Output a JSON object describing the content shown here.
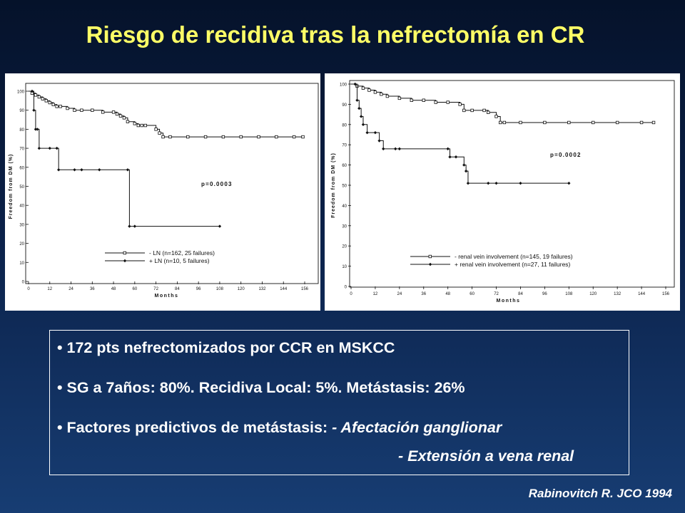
{
  "title": "Riesgo de recidiva tras la nefrectomía en CR",
  "bullets": {
    "b1": "• 172 pts nefrectomizados por CCR en MSKCC",
    "b2": "• SG a 7años: 80%.   Recidiva Local: 5%.   Metástasis: 26%",
    "b3_prefix": "• Factores predictivos de metástasis: ",
    "b3_item1": "- Afectación ganglionar",
    "b3_item2": "- Extensión a vena renal"
  },
  "citation": "Rabinovitch R. JCO 1994",
  "colors": {
    "title": "#ffff66",
    "text": "#ffffff",
    "curve": "#111111"
  },
  "chart_data": [
    {
      "type": "line",
      "step": true,
      "xlabel": "Months",
      "ylabel": "Freedom from DM (%)",
      "xlim": [
        0,
        156
      ],
      "ylim": [
        0,
        100
      ],
      "xticks": [
        "0",
        "12",
        "24",
        "36",
        "48",
        "60",
        "72",
        "84",
        "96",
        "108",
        "120",
        "132",
        "144",
        "156"
      ],
      "yticks": [
        "0",
        "10",
        "20",
        "30",
        "40",
        "50",
        "60",
        "70",
        "80",
        "90",
        "100"
      ],
      "annotation": "p=0.0003",
      "legend_position": "bottom-center",
      "series": [
        {
          "name": "-  LN (n=162, 25 failures)",
          "marker": "square",
          "x": [
            0,
            2,
            4,
            6,
            8,
            10,
            12,
            14,
            16,
            18,
            22,
            26,
            30,
            36,
            42,
            48,
            50,
            52,
            54,
            56,
            60,
            62,
            64,
            66,
            72,
            74,
            76,
            80,
            90,
            100,
            110,
            120,
            130,
            140,
            150,
            155
          ],
          "y": [
            100,
            99,
            98,
            97,
            96,
            95,
            94,
            93,
            92,
            92,
            91,
            90,
            90,
            90,
            89,
            89,
            88,
            87,
            86,
            84,
            83,
            82,
            82,
            82,
            80,
            78,
            76,
            76,
            76,
            76,
            76,
            76,
            76,
            76,
            76,
            76
          ]
        },
        {
          "name": "+ LN (n=10, 5 failures)",
          "marker": "diamond",
          "x": [
            0,
            2,
            3,
            4,
            5,
            6,
            12,
            16,
            17,
            26,
            30,
            40,
            56,
            57,
            60,
            108
          ],
          "y": [
            100,
            100,
            90,
            80,
            80,
            70,
            70,
            70,
            58.7,
            58.7,
            58.7,
            58.7,
            58.7,
            29,
            29,
            29
          ]
        }
      ]
    },
    {
      "type": "line",
      "step": true,
      "xlabel": "Months",
      "ylabel": "Freedom from DM (%)",
      "xlim": [
        0,
        156
      ],
      "ylim": [
        0,
        100
      ],
      "xticks": [
        "0",
        "12",
        "24",
        "36",
        "48",
        "60",
        "72",
        "84",
        "96",
        "108",
        "120",
        "132",
        "144",
        "156"
      ],
      "yticks": [
        "0",
        "10",
        "20",
        "30",
        "40",
        "50",
        "60",
        "70",
        "80",
        "90",
        "100"
      ],
      "annotation": "p=0.0002",
      "legend_position": "bottom-center",
      "series": [
        {
          "name": "-  renal vein involvement (n=145, 19 failures)",
          "marker": "square",
          "x": [
            0,
            3,
            6,
            9,
            12,
            15,
            18,
            24,
            30,
            36,
            42,
            48,
            54,
            56,
            60,
            66,
            68,
            72,
            74,
            76,
            84,
            96,
            108,
            120,
            132,
            144,
            150
          ],
          "y": [
            100,
            99,
            98,
            97,
            96,
            95,
            94,
            93,
            92,
            92,
            91,
            91,
            90,
            87,
            87,
            87,
            86,
            84,
            81,
            81,
            81,
            81,
            81,
            81,
            81,
            81,
            81
          ]
        },
        {
          "name": "+ renal vein involvement (n=27, 11 failures)",
          "marker": "diamond",
          "x": [
            0,
            2,
            3,
            4,
            5,
            6,
            8,
            12,
            14,
            16,
            22,
            24,
            48,
            49,
            52,
            56,
            57,
            58,
            68,
            72,
            84,
            108
          ],
          "y": [
            100,
            100,
            92,
            88,
            84,
            80,
            76,
            76,
            72,
            68,
            68,
            68,
            68,
            64,
            64,
            60,
            57,
            51,
            51,
            51,
            51,
            51
          ]
        }
      ]
    }
  ]
}
